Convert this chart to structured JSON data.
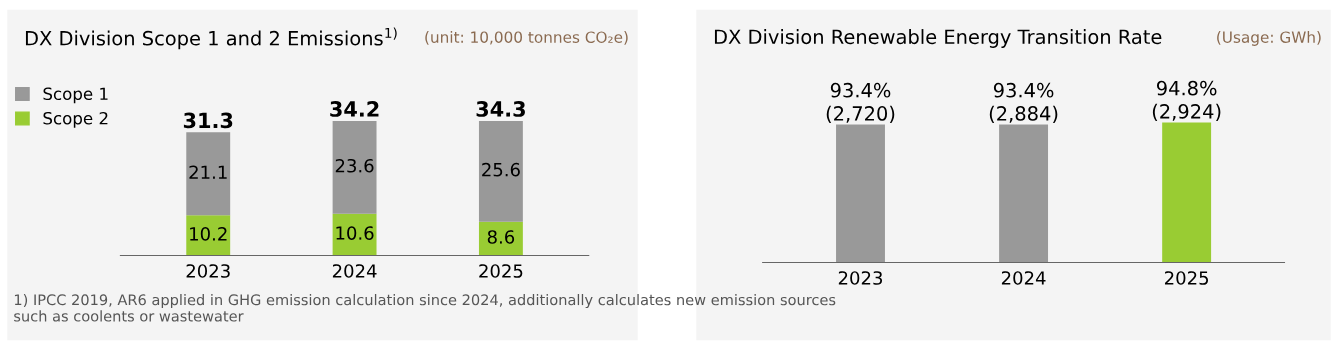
{
  "chart_data": [
    {
      "type": "bar",
      "title": "DX Division Scope 1 and 2 Emissions$^{1)}$",
      "subtitle": "(unit: 10,000 tonnes CO₂e)",
      "categories": [
        "2023",
        "2024",
        "2025"
      ],
      "stacked": true,
      "data_labels": true,
      "legend": "top left",
      "grid": false,
      "series": [
        {
          "name": "Scope 2",
          "color": "#99cc33",
          "values": [
            10.2,
            10.6,
            8.6
          ]
        },
        {
          "name": "Scope 1",
          "color": "#999999",
          "values": [
            21.1,
            23.6,
            25.6
          ]
        }
      ],
      "totals": [
        "31.3",
        "34.2",
        "34.3"
      ],
      "annotations": [
        "1) IPCC 2019, AR6 applied in GHG emission calculation since 2024, additionally calculates new emission sources such as coolents or wastewater"
      ]
    },
    {
      "type": "bar",
      "title": "DX Division Renewable Energy Transition Rate",
      "subtitle": "(Usage: GWh)",
      "categories": [
        "2023",
        "2024",
        "2025"
      ],
      "grid": false,
      "legend": false,
      "values": [
        93.4,
        93.4,
        94.8
      ],
      "colors": [
        "#999999",
        "#999999",
        "#99cc33"
      ],
      "value_labels": [
        "93.4%\n(2,720)",
        "93.4%\n(2,884)",
        "94.8%\n(2,924)"
      ]
    }
  ]
}
